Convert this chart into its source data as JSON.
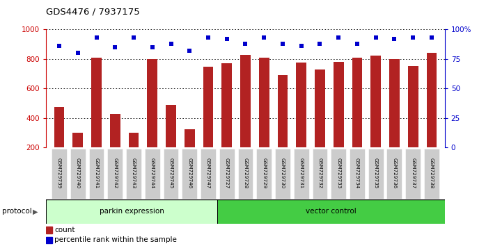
{
  "title": "GDS4476 / 7937175",
  "samples": [
    "GSM729739",
    "GSM729740",
    "GSM729741",
    "GSM729742",
    "GSM729743",
    "GSM729744",
    "GSM729745",
    "GSM729746",
    "GSM729747",
    "GSM729727",
    "GSM729728",
    "GSM729729",
    "GSM729730",
    "GSM729731",
    "GSM729732",
    "GSM729733",
    "GSM729734",
    "GSM729735",
    "GSM729736",
    "GSM729737",
    "GSM729738"
  ],
  "counts": [
    475,
    300,
    810,
    430,
    300,
    800,
    490,
    325,
    750,
    770,
    830,
    810,
    690,
    775,
    730,
    780,
    810,
    825,
    800,
    755,
    840
  ],
  "percentile_ranks": [
    86,
    80,
    93,
    85,
    93,
    85,
    88,
    82,
    93,
    92,
    88,
    93,
    88,
    86,
    88,
    93,
    88,
    93,
    92,
    93,
    93
  ],
  "parkin_count": 9,
  "vector_count": 12,
  "bar_color": "#B22222",
  "dot_color": "#0000CC",
  "parkin_bg": "#CCFFCC",
  "vector_bg": "#44CC44",
  "label_bg": "#CCCCCC",
  "left_axis_color": "#CC0000",
  "right_axis_color": "#0000CC",
  "ylim_left": [
    200,
    1000
  ],
  "ylim_right": [
    0,
    100
  ],
  "yticks_left": [
    200,
    400,
    600,
    800,
    1000
  ],
  "yticks_right": [
    0,
    25,
    50,
    75,
    100
  ],
  "grid_yticks": [
    400,
    600,
    800,
    1000
  ],
  "legend_count_label": "count",
  "legend_pct_label": "percentile rank within the sample",
  "protocol_label": "protocol",
  "parkin_label": "parkin expression",
  "vector_label": "vector control"
}
